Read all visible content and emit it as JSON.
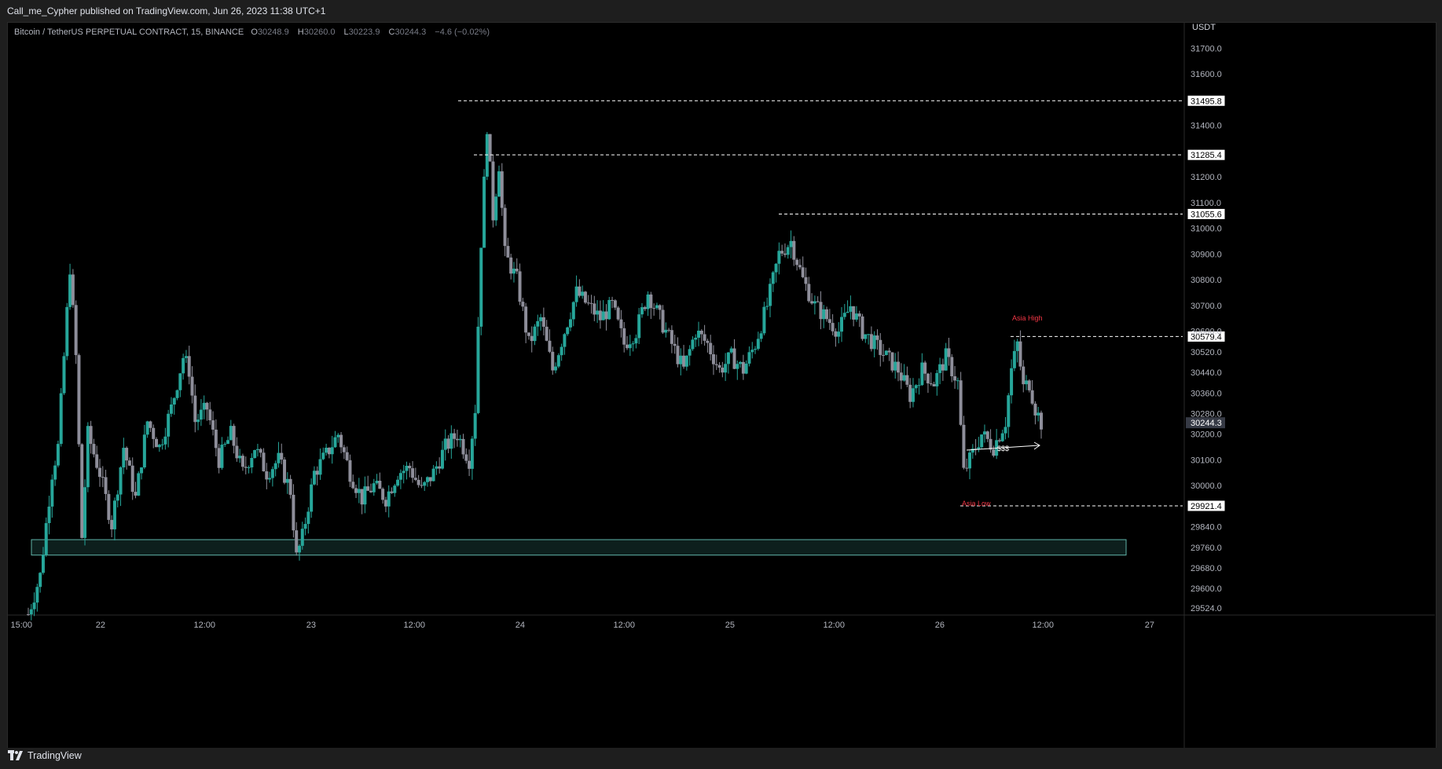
{
  "header": {
    "publisher_text": "Call_me_Cypher published on TradingView.com, Jun 26, 2023 11:38 UTC+1"
  },
  "legend": {
    "symbol": "Bitcoin / TetherUS PERPETUAL CONTRACT, 15, BINANCE",
    "o_label": "O",
    "o_value": "30248.9",
    "h_label": "H",
    "h_value": "30260.0",
    "l_label": "L",
    "l_value": "30223.9",
    "c_label": "C",
    "c_value": "30244.3",
    "change": "−4.6 (−0.02%)"
  },
  "footer": {
    "brand": "TradingView",
    "logo_icon": "tradingview-logo-icon"
  },
  "colors": {
    "background": "#000000",
    "up": "#26a69a",
    "down": "#8e8e9a",
    "annotation_red": "#f23645",
    "zone_border": "#5fb3a8",
    "zone_fill": "#0d1f1d",
    "line_white": "#ffffff"
  },
  "chart_data": {
    "type": "candlestick",
    "currency_label": "USDT",
    "ylim": [
      29500,
      31750
    ],
    "y_ticks": [
      "31700.0",
      "31600.0",
      "31400.0",
      "31200.0",
      "31100.0",
      "31000.0",
      "30900.0",
      "30800.0",
      "30700.0",
      "30600.0",
      "30520.0",
      "30440.0",
      "30360.0",
      "30280.0",
      "30200.0",
      "30100.0",
      "30000.0",
      "29840.0",
      "29760.0",
      "29680.0",
      "29600.0",
      "29524.0"
    ],
    "x_ticks": [
      "15:00",
      "22",
      "12:00",
      "23",
      "12:00",
      "24",
      "12:00",
      "25",
      "12:00",
      "26",
      "12:00",
      "27"
    ],
    "price_path": [
      [
        0,
        29500
      ],
      [
        2,
        29650
      ],
      [
        4,
        30050
      ],
      [
        5,
        30150
      ],
      [
        7,
        30850
      ],
      [
        8,
        30500
      ],
      [
        9,
        29800
      ],
      [
        10,
        30200
      ],
      [
        12,
        30050
      ],
      [
        14,
        29850
      ],
      [
        16,
        30150
      ],
      [
        18,
        29950
      ],
      [
        20,
        30250
      ],
      [
        22,
        30150
      ],
      [
        24,
        30300
      ],
      [
        26,
        30500
      ],
      [
        27,
        30450
      ],
      [
        28,
        30250
      ],
      [
        30,
        30300
      ],
      [
        32,
        30100
      ],
      [
        34,
        30200
      ],
      [
        36,
        30050
      ],
      [
        38,
        30150
      ],
      [
        40,
        30050
      ],
      [
        42,
        30100
      ],
      [
        44,
        29980
      ],
      [
        45,
        29720
      ],
      [
        46,
        29800
      ],
      [
        48,
        30050
      ],
      [
        50,
        30120
      ],
      [
        52,
        30200
      ],
      [
        54,
        30050
      ],
      [
        56,
        29950
      ],
      [
        58,
        30000
      ],
      [
        60,
        29950
      ],
      [
        62,
        30050
      ],
      [
        64,
        30070
      ],
      [
        66,
        29980
      ],
      [
        68,
        30050
      ],
      [
        70,
        30150
      ],
      [
        72,
        30200
      ],
      [
        74,
        30100
      ],
      [
        75,
        30300
      ],
      [
        76,
        30950
      ],
      [
        77,
        31400
      ],
      [
        78,
        31050
      ],
      [
        79,
        31250
      ],
      [
        80,
        30900
      ],
      [
        82,
        30800
      ],
      [
        84,
        30550
      ],
      [
        86,
        30650
      ],
      [
        88,
        30450
      ],
      [
        90,
        30600
      ],
      [
        92,
        30750
      ],
      [
        94,
        30700
      ],
      [
        96,
        30650
      ],
      [
        98,
        30700
      ],
      [
        100,
        30550
      ],
      [
        102,
        30600
      ],
      [
        104,
        30750
      ],
      [
        106,
        30650
      ],
      [
        108,
        30550
      ],
      [
        110,
        30450
      ],
      [
        112,
        30600
      ],
      [
        114,
        30550
      ],
      [
        116,
        30450
      ],
      [
        118,
        30500
      ],
      [
        120,
        30450
      ],
      [
        122,
        30550
      ],
      [
        124,
        30700
      ],
      [
        126,
        30900
      ],
      [
        128,
        30950
      ],
      [
        130,
        30800
      ],
      [
        132,
        30700
      ],
      [
        134,
        30650
      ],
      [
        136,
        30600
      ],
      [
        138,
        30700
      ],
      [
        140,
        30600
      ],
      [
        142,
        30550
      ],
      [
        144,
        30500
      ],
      [
        146,
        30450
      ],
      [
        148,
        30350
      ],
      [
        150,
        30450
      ],
      [
        152,
        30400
      ],
      [
        154,
        30500
      ],
      [
        156,
        30400
      ],
      [
        157,
        30050
      ],
      [
        158,
        30100
      ],
      [
        160,
        30200
      ],
      [
        162,
        30150
      ],
      [
        164,
        30250
      ],
      [
        165,
        30450
      ],
      [
        166,
        30550
      ],
      [
        167,
        30380
      ],
      [
        168,
        30400
      ],
      [
        169,
        30300
      ],
      [
        170,
        30244
      ]
    ],
    "levels": [
      {
        "label": "31495.8",
        "value": 31495.8
      },
      {
        "label": "31285.4",
        "value": 31285.4
      },
      {
        "label": "31055.6",
        "value": 31055.6
      },
      {
        "label": "30579.4",
        "value": 30579.4
      },
      {
        "label": "29921.4",
        "value": 29921.4
      }
    ],
    "current_price_label": "30244.3",
    "annotations": {
      "asia_high": "Asia High",
      "asia_low": "Asia Low",
      "liquidity": "$$$"
    },
    "demand_zone": {
      "low": 29730,
      "high": 29790
    }
  }
}
